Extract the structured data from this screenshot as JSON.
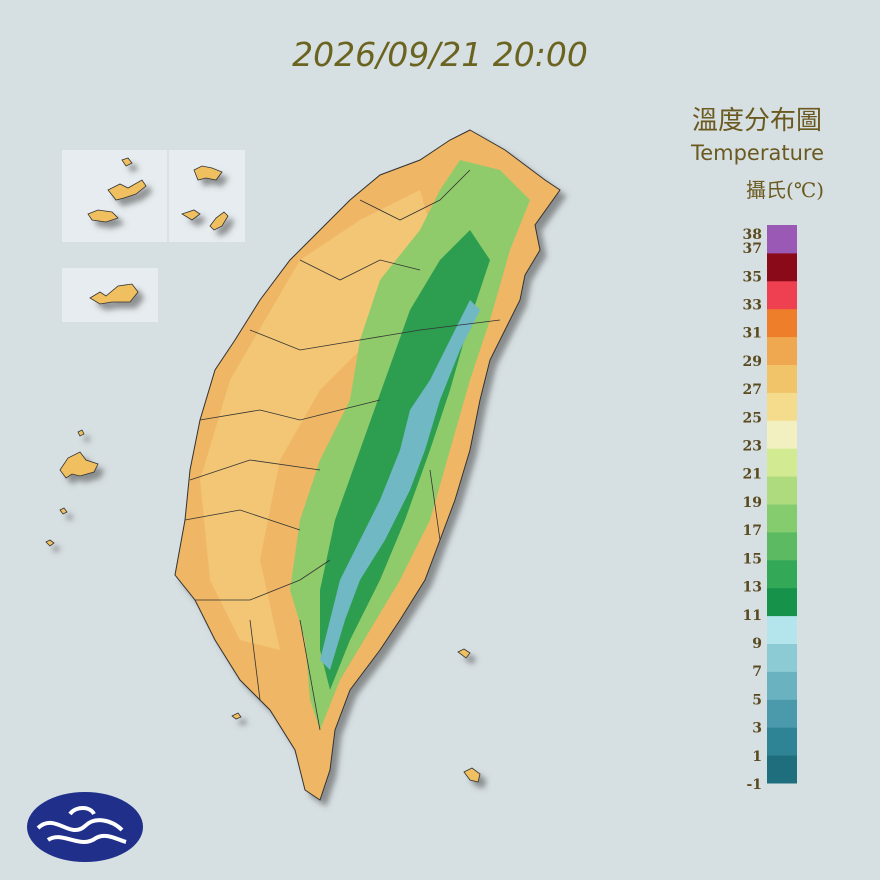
{
  "timestamp": "2026/09/21 20:00",
  "legend": {
    "title": "溫度分布圖",
    "subtitle": "Temperature",
    "unit": "攝氏(℃)",
    "ticks": [
      38,
      37,
      35,
      33,
      31,
      29,
      27,
      25,
      23,
      21,
      19,
      17,
      15,
      13,
      11,
      9,
      7,
      5,
      3,
      1,
      -1
    ],
    "colors": [
      "#1e6e7e",
      "#2e8394",
      "#4a9aab",
      "#6bb2c0",
      "#8ccad4",
      "#b4e4ec",
      "#17924a",
      "#33a856",
      "#5cbb62",
      "#85cc6e",
      "#aedb7e",
      "#d2ea92",
      "#f2f0c0",
      "#f5dc8c",
      "#f2c46a",
      "#f0a850",
      "#ee7e2a",
      "#ee4050",
      "#8a0a1a",
      "#9b59b6"
    ]
  }
}
